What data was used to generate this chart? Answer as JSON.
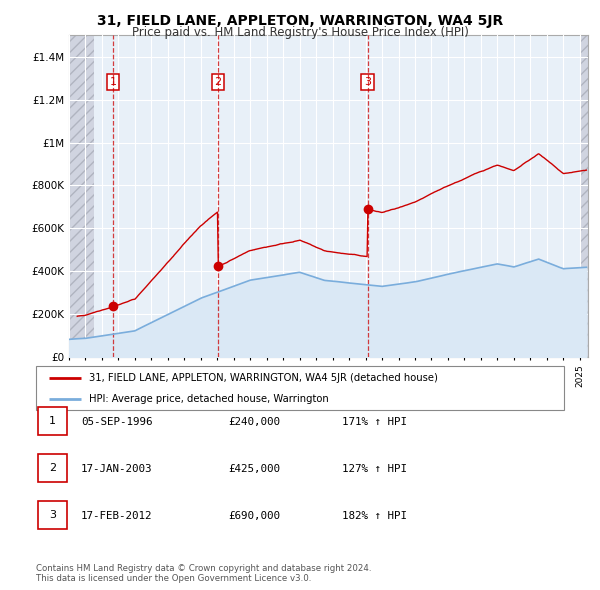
{
  "title": "31, FIELD LANE, APPLETON, WARRINGTON, WA4 5JR",
  "subtitle": "Price paid vs. HM Land Registry's House Price Index (HPI)",
  "property_line_color": "#cc0000",
  "hpi_line_color": "#7aaddc",
  "hpi_fill_color": "#dae8f5",
  "chart_bg_color": "#e8f0f8",
  "hatch_color": "#c8ccd8",
  "ylim": [
    0,
    1500000
  ],
  "yticks": [
    0,
    200000,
    400000,
    600000,
    800000,
    1000000,
    1200000,
    1400000
  ],
  "ytick_labels": [
    "£0",
    "£200K",
    "£400K",
    "£600K",
    "£800K",
    "£1M",
    "£1.2M",
    "£1.4M"
  ],
  "sale_years": [
    1996.68,
    2003.04,
    2012.12
  ],
  "sale_prices": [
    240000,
    425000,
    690000
  ],
  "sale_labels": [
    "1",
    "2",
    "3"
  ],
  "legend_property_label": "31, FIELD LANE, APPLETON, WARRINGTON, WA4 5JR (detached house)",
  "legend_hpi_label": "HPI: Average price, detached house, Warrington",
  "table_rows": [
    [
      "1",
      "05-SEP-1996",
      "£240,000",
      "171% ↑ HPI"
    ],
    [
      "2",
      "17-JAN-2003",
      "£425,000",
      "127% ↑ HPI"
    ],
    [
      "3",
      "17-FEB-2012",
      "£690,000",
      "182% ↑ HPI"
    ]
  ],
  "footer": "Contains HM Land Registry data © Crown copyright and database right 2024.\nThis data is licensed under the Open Government Licence v3.0.",
  "xlim_start": 1994.0,
  "xlim_end": 2025.5,
  "hatch_left_end": 1995.5,
  "hatch_right_start": 2025.0
}
